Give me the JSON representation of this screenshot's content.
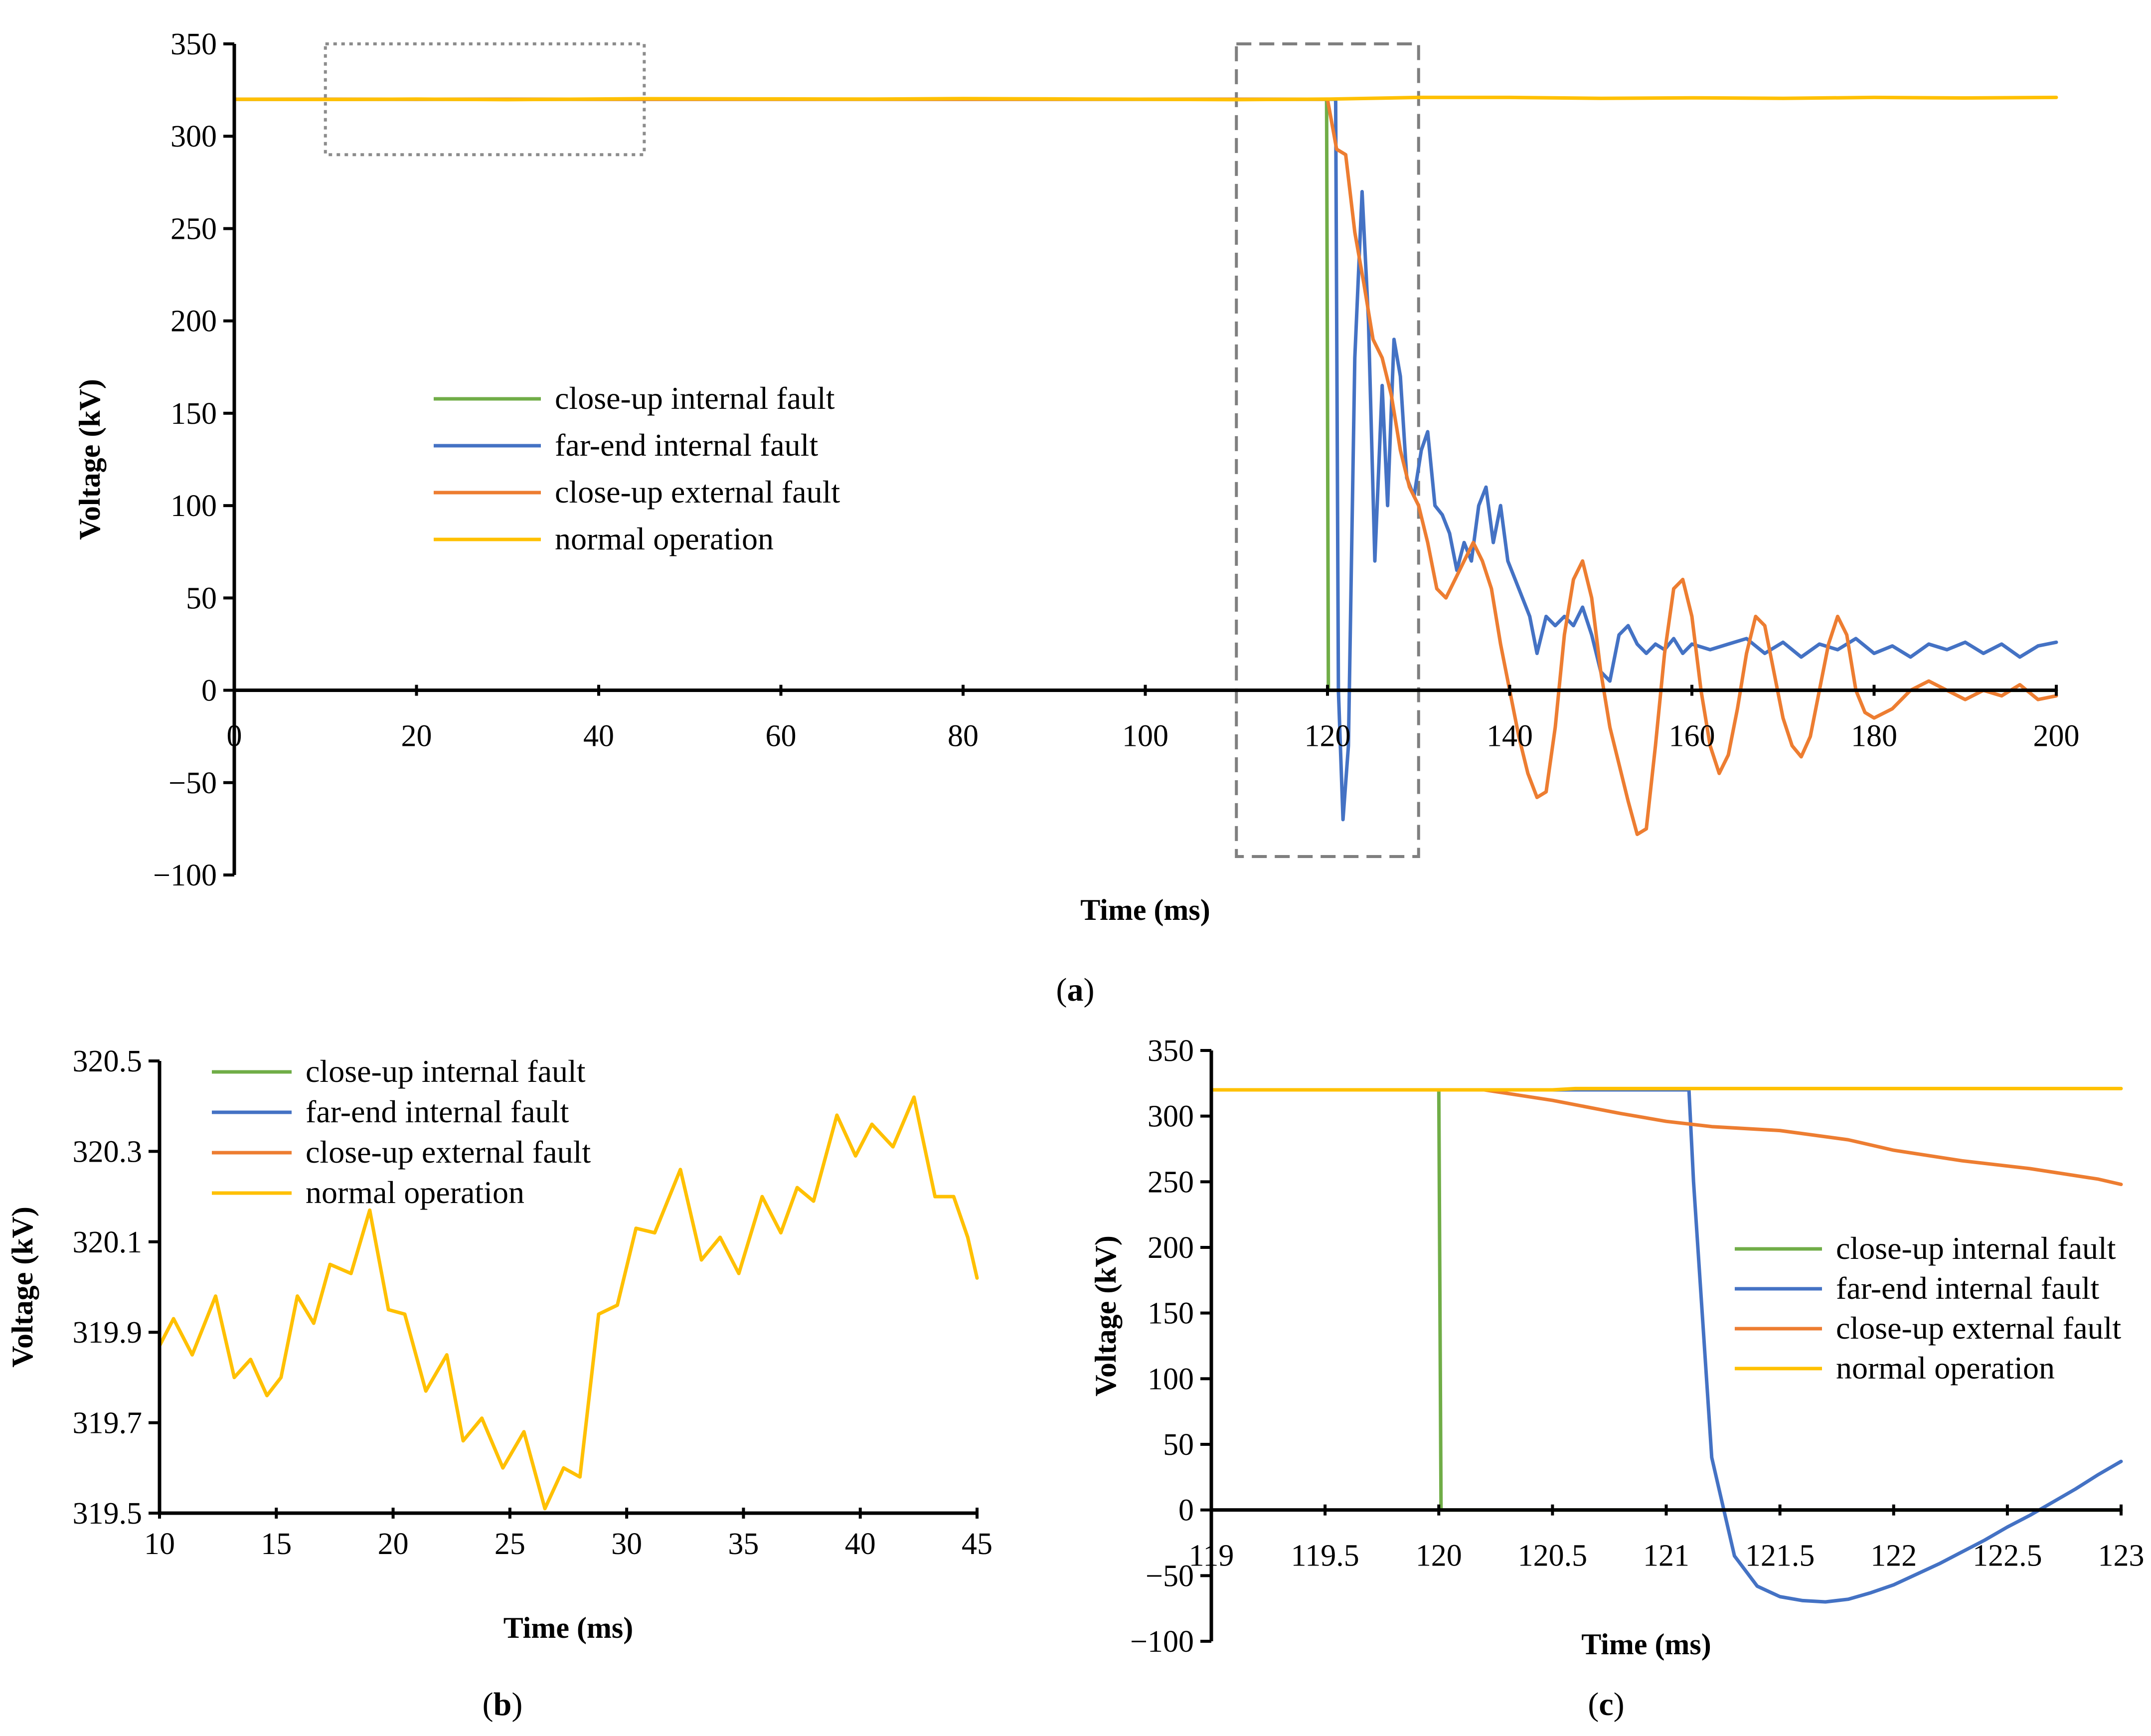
{
  "series_styles": [
    {
      "name": "close-up internal fault",
      "color": "#70ad47"
    },
    {
      "name": "far-end internal fault",
      "color": "#4472c4"
    },
    {
      "name": "close-up external fault",
      "color": "#ed7d31"
    },
    {
      "name": "normal operation",
      "color": "#ffc000"
    }
  ],
  "chart_data": [
    {
      "id": "a",
      "type": "line",
      "panel_label_letter": "a",
      "xlabel": "Time (ms)",
      "ylabel": "Voltage (kV)",
      "xlim": [
        0,
        200
      ],
      "ylim": [
        -100,
        350
      ],
      "xticks": [
        0,
        20,
        40,
        60,
        80,
        100,
        120,
        140,
        160,
        180,
        200
      ],
      "yticks": [
        -100,
        -50,
        0,
        50,
        100,
        150,
        200,
        250,
        300,
        350
      ],
      "ytick_labels": [
        "−100",
        "−50",
        "0",
        "50",
        "100",
        "150",
        "200",
        "250",
        "300",
        "350"
      ],
      "legend": [
        "close-up internal fault",
        "far-end internal fault",
        "close-up external fault",
        "normal operation"
      ],
      "zoom_boxes": [
        {
          "x": [
            10,
            45
          ],
          "y": [
            290,
            350
          ],
          "style": "dotted"
        },
        {
          "x": [
            110,
            130
          ],
          "y": [
            -90,
            350
          ],
          "style": "dashed"
        }
      ],
      "series": [
        {
          "name": "close-up internal fault",
          "x": [
            0,
            119.9,
            120.0,
            120.1,
            200
          ],
          "y": [
            320,
            320,
            160,
            0,
            0
          ]
        },
        {
          "name": "far-end internal fault",
          "x": [
            0,
            120.9,
            121.2,
            121.7,
            122.3,
            123.0,
            123.8,
            124.5,
            125.2,
            126.0,
            126.6,
            127.3,
            128.0,
            128.7,
            129.5,
            130.3,
            131.0,
            131.8,
            132.6,
            133.4,
            134.2,
            135.0,
            135.8,
            136.6,
            137.4,
            138.2,
            139.0,
            139.8,
            140.6,
            141.4,
            142.2,
            143.0,
            144.0,
            145.0,
            146.0,
            147.0,
            148.0,
            149.0,
            150.0,
            151.0,
            152.0,
            153.0,
            154.0,
            155.0,
            156.0,
            157.0,
            158.0,
            159.0,
            160.0,
            162.0,
            164.0,
            166.0,
            168.0,
            170.0,
            172.0,
            174.0,
            176.0,
            178.0,
            180.0,
            182.0,
            184.0,
            186.0,
            188.0,
            190.0,
            192.0,
            194.0,
            196.0,
            198.0,
            200.0
          ],
          "y": [
            320,
            320,
            0,
            -70,
            -30,
            180,
            270,
            200,
            70,
            165,
            100,
            190,
            170,
            115,
            105,
            130,
            140,
            100,
            95,
            85,
            65,
            80,
            70,
            100,
            110,
            80,
            100,
            70,
            60,
            50,
            40,
            20,
            40,
            35,
            40,
            35,
            45,
            30,
            10,
            5,
            30,
            35,
            25,
            20,
            25,
            22,
            28,
            20,
            25,
            22,
            25,
            28,
            20,
            26,
            18,
            25,
            22,
            28,
            20,
            24,
            18,
            25,
            22,
            26,
            20,
            25,
            18,
            24,
            26
          ]
        },
        {
          "name": "close-up external fault",
          "x": [
            0,
            120,
            121,
            122,
            123,
            124,
            125,
            126,
            127,
            128,
            129,
            130,
            131,
            132,
            133,
            134,
            135,
            136,
            137,
            138,
            139,
            140,
            141,
            142,
            143,
            144,
            145,
            146,
            147,
            148,
            149,
            150,
            151,
            152,
            153,
            154,
            155,
            156,
            157,
            158,
            159,
            160,
            161,
            162,
            163,
            164,
            165,
            166,
            167,
            168,
            169,
            170,
            171,
            172,
            173,
            174,
            175,
            176,
            177,
            178,
            179,
            180,
            182,
            184,
            186,
            188,
            190,
            192,
            194,
            196,
            198,
            200
          ],
          "y": [
            320,
            320,
            293,
            290,
            248,
            220,
            190,
            180,
            160,
            130,
            110,
            100,
            80,
            55,
            50,
            60,
            70,
            80,
            70,
            55,
            25,
            0,
            -25,
            -45,
            -58,
            -55,
            -20,
            30,
            60,
            70,
            50,
            10,
            -20,
            -40,
            -60,
            -78,
            -75,
            -30,
            20,
            55,
            60,
            40,
            0,
            -30,
            -45,
            -35,
            -10,
            20,
            40,
            35,
            10,
            -15,
            -30,
            -36,
            -25,
            0,
            25,
            40,
            30,
            0,
            -12,
            -15,
            -10,
            0,
            5,
            0,
            -5,
            0,
            -3,
            3,
            -5,
            -3
          ]
        },
        {
          "name": "normal operation",
          "x": [
            0,
            10,
            20,
            30,
            45,
            60,
            70,
            80,
            90,
            100,
            110,
            120,
            130,
            140,
            150,
            160,
            170,
            180,
            190,
            200
          ],
          "y": [
            320,
            319.9,
            320.1,
            319.8,
            320.3,
            320.2,
            320.1,
            320.4,
            320.2,
            320.0,
            319.8,
            320.1,
            321,
            321,
            320.5,
            320.8,
            320.5,
            321,
            320.7,
            321
          ]
        }
      ]
    },
    {
      "id": "b",
      "type": "line",
      "panel_label_letter": "b",
      "xlabel": "Time (ms)",
      "ylabel": "Voltage (kV)",
      "xlim": [
        10,
        45
      ],
      "ylim": [
        319.5,
        320.5
      ],
      "xticks": [
        10,
        15,
        20,
        25,
        30,
        35,
        40,
        45
      ],
      "yticks": [
        319.5,
        319.7,
        319.9,
        320.1,
        320.3,
        320.5
      ],
      "ytick_labels": [
        "319.5",
        "319.7",
        "319.9",
        "320.1",
        "320.3",
        "320.5"
      ],
      "legend": [
        "close-up internal fault",
        "far-end internal fault",
        "close-up external fault",
        "normal operation"
      ],
      "series": [
        {
          "name": "normal operation",
          "x": [
            10,
            10.6,
            11.4,
            12.4,
            13.2,
            13.9,
            14.6,
            15.2,
            15.9,
            16.6,
            17.3,
            18.2,
            19.0,
            19.8,
            20.5,
            21.4,
            22.3,
            23.0,
            23.8,
            24.7,
            25.6,
            26.5,
            27.3,
            28.0,
            28.8,
            29.6,
            30.4,
            31.2,
            32.3,
            33.2,
            34.0,
            34.8,
            35.8,
            36.6,
            37.3,
            38.0,
            39.0,
            39.8,
            40.5,
            41.4,
            42.3,
            43.2,
            44.0,
            44.6,
            45.0
          ],
          "y": [
            319.87,
            319.93,
            319.85,
            319.98,
            319.8,
            319.84,
            319.76,
            319.8,
            319.98,
            319.92,
            320.05,
            320.03,
            320.17,
            319.95,
            319.94,
            319.77,
            319.85,
            319.66,
            319.71,
            319.6,
            319.68,
            319.51,
            319.6,
            319.58,
            319.94,
            319.96,
            320.13,
            320.12,
            320.26,
            320.06,
            320.11,
            320.03,
            320.2,
            320.12,
            320.22,
            320.19,
            320.38,
            320.29,
            320.36,
            320.31,
            320.42,
            320.2,
            320.2,
            320.11,
            320.02
          ]
        }
      ]
    },
    {
      "id": "c",
      "type": "line",
      "panel_label_letter": "c",
      "xlabel": "Time (ms)",
      "ylabel": "Voltage (kV)",
      "xlim": [
        119,
        123
      ],
      "ylim": [
        -100,
        350
      ],
      "xticks": [
        119,
        119.5,
        120,
        120.5,
        121,
        121.5,
        122,
        122.5,
        123
      ],
      "yticks": [
        -100,
        -50,
        0,
        50,
        100,
        150,
        200,
        250,
        300,
        350
      ],
      "ytick_labels": [
        "−100",
        "−50",
        "0",
        "50",
        "100",
        "150",
        "200",
        "250",
        "300",
        "350"
      ],
      "legend": [
        "close-up internal fault",
        "far-end internal fault",
        "close-up external fault",
        "normal operation"
      ],
      "series": [
        {
          "name": "close-up internal fault",
          "x": [
            119,
            120.0,
            120.01,
            123
          ],
          "y": [
            320,
            320,
            0,
            0
          ]
        },
        {
          "name": "far-end internal fault",
          "x": [
            119,
            121.1,
            121.12,
            121.2,
            121.3,
            121.4,
            121.5,
            121.6,
            121.7,
            121.8,
            121.9,
            122.0,
            122.1,
            122.2,
            122.3,
            122.4,
            122.5,
            122.6,
            122.7,
            122.8,
            122.9,
            123.0
          ],
          "y": [
            320,
            320,
            250,
            40,
            -35,
            -58,
            -66,
            -69,
            -70,
            -68,
            -63,
            -57,
            -49,
            -41,
            -32,
            -23,
            -13,
            -4,
            6,
            16,
            27,
            37
          ]
        },
        {
          "name": "close-up external fault",
          "x": [
            119,
            120.2,
            120.5,
            120.8,
            121.0,
            121.2,
            121.5,
            121.8,
            122.0,
            122.3,
            122.6,
            122.9,
            123.0
          ],
          "y": [
            320,
            320,
            312,
            302,
            296,
            292,
            289,
            282,
            274,
            266,
            260,
            252,
            248
          ]
        },
        {
          "name": "normal operation",
          "x": [
            119,
            120.5,
            120.6,
            123
          ],
          "y": [
            320,
            320,
            321,
            321
          ]
        }
      ]
    }
  ]
}
